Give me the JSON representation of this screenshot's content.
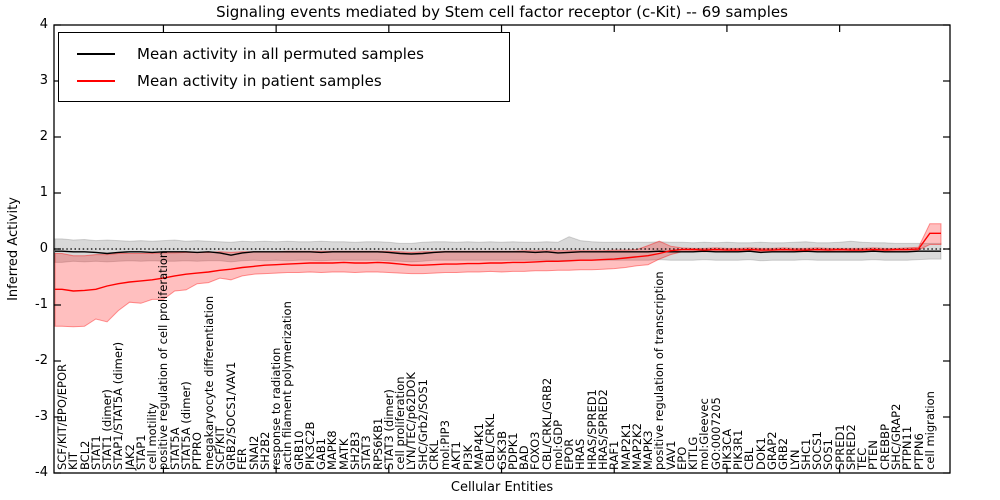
{
  "title": "Signaling events mediated by Stem cell factor receptor (c-Kit) -- 69 samples",
  "legend": {
    "entries": [
      {
        "label": "Mean activity in all permuted samples",
        "color": "#000000"
      },
      {
        "label": "Mean activity in patient samples",
        "color": "#ff0000"
      }
    ]
  },
  "chart_data": {
    "type": "line",
    "title": "Signaling events mediated by Stem cell factor receptor (c-Kit) -- 69 samples",
    "xlabel": "Cellular Entities",
    "ylabel": "Inferred Activity",
    "ylim": [
      -4,
      4
    ],
    "yticks": [
      -4,
      -3,
      -2,
      -1,
      0,
      1,
      2,
      3,
      4
    ],
    "grid": false,
    "zero_line_dotted": true,
    "legend_position": "upper left",
    "sample_count": "69 samples",
    "categories": [
      "SCF/KIT/EPO/EPOR",
      "KIT",
      "BCL2",
      "STAT1",
      "STAT1 (dimer)",
      "STAP1/STAT5A (dimer)",
      "JAK2",
      "STAP1",
      "cell motility",
      "positive regulation of cell proliferation",
      "STAT5A",
      "STAT5A (dimer)",
      "PTPRO",
      "megakaryocyte differentiation",
      "SCF/KIT",
      "GRB2/SOCS1/VAV1",
      "FER",
      "SNAI2",
      "SH2B2",
      "response to radiation",
      "actin filament polymerization",
      "GRB10",
      "PIK3C2B",
      "GAB1",
      "MAPK8",
      "MATK",
      "SH2B3",
      "STAT3",
      "RPS6KB1",
      "STAT3 (dimer)",
      "cell proliferation",
      "LYN/TEC/p62DOK",
      "SHC/Grb2/SOS1",
      "CRKL",
      "mol:PIP3",
      "AKT1",
      "PI3K",
      "MAP4K1",
      "CBL/CRKL",
      "GSK3B",
      "PDPK1",
      "BAD",
      "FOXO3",
      "CBL/CRKL/GRB2",
      "mol:GDP",
      "EPOR",
      "HRAS",
      "HRAS/SPRED1",
      "HRAS/SPRED2",
      "RAF1",
      "MAP2K1",
      "MAP2K2",
      "MAPK3",
      "positive regulation of transcription",
      "VAV1",
      "EPO",
      "KITLG",
      "mol:Gleevec",
      "GO:0007205",
      "PIK3CA",
      "PIK3R1",
      "CBL",
      "DOK1",
      "GRAP2",
      "GRB2",
      "LYN",
      "SHC1",
      "SOCS1",
      "SOS1",
      "SPRED1",
      "SPRED2",
      "TEC",
      "PTEN",
      "CREBBP",
      "SHC/GRAP2",
      "PTPN11",
      "PTPN6",
      "cell migration"
    ],
    "series": [
      {
        "name": "Mean activity in all permuted samples",
        "color": "#000000",
        "band_color": "rgba(0,0,0,0.15)",
        "band_edge": "rgba(0,0,0,0.15)",
        "values": [
          -0.04,
          -0.05,
          -0.05,
          -0.06,
          -0.08,
          -0.06,
          -0.05,
          -0.05,
          -0.06,
          -0.05,
          -0.05,
          -0.05,
          -0.06,
          -0.05,
          -0.07,
          -0.11,
          -0.07,
          -0.05,
          -0.05,
          -0.05,
          -0.05,
          -0.05,
          -0.05,
          -0.06,
          -0.05,
          -0.05,
          -0.05,
          -0.05,
          -0.05,
          -0.06,
          -0.08,
          -0.09,
          -0.08,
          -0.06,
          -0.05,
          -0.05,
          -0.05,
          -0.05,
          -0.05,
          -0.05,
          -0.05,
          -0.05,
          -0.06,
          -0.05,
          -0.07,
          -0.06,
          -0.05,
          -0.05,
          -0.05,
          -0.05,
          -0.05,
          -0.05,
          -0.05,
          -0.04,
          -0.05,
          -0.05,
          -0.05,
          -0.04,
          -0.05,
          -0.05,
          -0.05,
          -0.04,
          -0.06,
          -0.05,
          -0.05,
          -0.05,
          -0.04,
          -0.05,
          -0.05,
          -0.05,
          -0.05,
          -0.05,
          -0.04,
          -0.05,
          -0.05,
          -0.05,
          -0.04,
          -0.04
        ],
        "band_upper": [
          0.18,
          0.16,
          0.17,
          0.15,
          0.16,
          0.15,
          0.14,
          0.15,
          0.14,
          0.15,
          0.16,
          0.14,
          0.15,
          0.14,
          0.13,
          0.12,
          0.14,
          0.13,
          0.14,
          0.13,
          0.14,
          0.13,
          0.13,
          0.14,
          0.13,
          0.13,
          0.12,
          0.13,
          0.13,
          0.12,
          0.1,
          0.1,
          0.12,
          0.13,
          0.13,
          0.12,
          0.13,
          0.12,
          0.13,
          0.12,
          0.13,
          0.12,
          0.12,
          0.13,
          0.12,
          0.22,
          0.15,
          0.13,
          0.12,
          0.12,
          0.12,
          0.12,
          0.12,
          0.13,
          0.12,
          0.12,
          0.11,
          0.12,
          0.11,
          0.12,
          0.11,
          0.11,
          0.12,
          0.11,
          0.11,
          0.12,
          0.13,
          0.11,
          0.11,
          0.12,
          0.14,
          0.12,
          0.11,
          0.11,
          0.1,
          0.1,
          0.1,
          0.1
        ],
        "band_lower": [
          -0.24,
          -0.22,
          -0.23,
          -0.22,
          -0.23,
          -0.22,
          -0.21,
          -0.22,
          -0.21,
          -0.22,
          -0.22,
          -0.21,
          -0.22,
          -0.21,
          -0.21,
          -0.23,
          -0.21,
          -0.2,
          -0.21,
          -0.2,
          -0.21,
          -0.2,
          -0.2,
          -0.21,
          -0.2,
          -0.2,
          -0.2,
          -0.2,
          -0.2,
          -0.21,
          -0.22,
          -0.23,
          -0.22,
          -0.2,
          -0.2,
          -0.2,
          -0.2,
          -0.2,
          -0.2,
          -0.2,
          -0.2,
          -0.2,
          -0.2,
          -0.2,
          -0.21,
          -0.2,
          -0.2,
          -0.2,
          -0.2,
          -0.2,
          -0.2,
          -0.2,
          -0.2,
          -0.19,
          -0.2,
          -0.2,
          -0.2,
          -0.19,
          -0.2,
          -0.2,
          -0.2,
          -0.19,
          -0.21,
          -0.2,
          -0.2,
          -0.2,
          -0.19,
          -0.2,
          -0.2,
          -0.2,
          -0.2,
          -0.2,
          -0.19,
          -0.2,
          -0.2,
          -0.2,
          -0.19,
          -0.18
        ]
      },
      {
        "name": "Mean activity in patient samples",
        "color": "#ff0000",
        "band_color": "rgba(255,0,0,0.25)",
        "band_edge": "rgba(255,0,0,0.4)",
        "values": [
          -0.72,
          -0.75,
          -0.74,
          -0.72,
          -0.66,
          -0.62,
          -0.59,
          -0.57,
          -0.55,
          -0.52,
          -0.48,
          -0.45,
          -0.43,
          -0.41,
          -0.38,
          -0.36,
          -0.33,
          -0.31,
          -0.29,
          -0.28,
          -0.27,
          -0.26,
          -0.25,
          -0.25,
          -0.25,
          -0.24,
          -0.25,
          -0.25,
          -0.24,
          -0.25,
          -0.27,
          -0.29,
          -0.29,
          -0.28,
          -0.27,
          -0.27,
          -0.26,
          -0.26,
          -0.25,
          -0.25,
          -0.24,
          -0.24,
          -0.23,
          -0.22,
          -0.22,
          -0.21,
          -0.2,
          -0.2,
          -0.19,
          -0.18,
          -0.16,
          -0.14,
          -0.12,
          -0.08,
          -0.03,
          -0.01,
          -0.01,
          -0.02,
          -0.01,
          -0.02,
          -0.02,
          -0.01,
          -0.02,
          -0.02,
          -0.01,
          -0.02,
          -0.02,
          -0.01,
          -0.02,
          -0.01,
          -0.02,
          -0.02,
          -0.01,
          -0.02,
          -0.01,
          -0.01,
          0.0,
          0.28
        ],
        "band_upper": [
          -0.08,
          -0.12,
          -0.12,
          -0.1,
          -0.1,
          -0.08,
          -0.08,
          -0.08,
          -0.08,
          -0.07,
          -0.07,
          -0.06,
          -0.06,
          -0.06,
          -0.05,
          -0.06,
          -0.05,
          -0.05,
          -0.05,
          -0.05,
          -0.04,
          -0.04,
          -0.04,
          -0.04,
          -0.04,
          -0.04,
          -0.04,
          -0.04,
          -0.04,
          -0.04,
          -0.05,
          -0.06,
          -0.05,
          -0.05,
          -0.04,
          -0.04,
          -0.04,
          -0.04,
          -0.04,
          -0.04,
          -0.04,
          -0.03,
          -0.03,
          -0.03,
          -0.03,
          -0.03,
          -0.03,
          -0.03,
          -0.03,
          -0.02,
          -0.02,
          -0.01,
          0.06,
          0.14,
          0.05,
          0.02,
          0.01,
          0.01,
          0.02,
          0.01,
          0.01,
          0.02,
          0.01,
          0.01,
          0.02,
          0.01,
          0.01,
          0.02,
          0.01,
          0.01,
          0.01,
          0.01,
          0.02,
          0.01,
          0.01,
          0.02,
          0.03,
          0.45
        ],
        "band_lower": [
          -1.38,
          -1.39,
          -1.38,
          -1.25,
          -1.3,
          -1.1,
          -0.95,
          -0.97,
          -0.9,
          -0.9,
          -0.75,
          -0.73,
          -0.62,
          -0.6,
          -0.52,
          -0.55,
          -0.48,
          -0.45,
          -0.44,
          -0.43,
          -0.42,
          -0.42,
          -0.41,
          -0.42,
          -0.41,
          -0.41,
          -0.42,
          -0.41,
          -0.41,
          -0.42,
          -0.43,
          -0.44,
          -0.44,
          -0.43,
          -0.42,
          -0.42,
          -0.41,
          -0.41,
          -0.4,
          -0.41,
          -0.4,
          -0.4,
          -0.39,
          -0.39,
          -0.38,
          -0.38,
          -0.37,
          -0.37,
          -0.36,
          -0.35,
          -0.33,
          -0.3,
          -0.28,
          -0.18,
          -0.1,
          -0.05,
          -0.04,
          -0.05,
          -0.04,
          -0.05,
          -0.05,
          -0.04,
          -0.05,
          -0.05,
          -0.04,
          -0.05,
          -0.05,
          -0.04,
          -0.05,
          -0.04,
          -0.05,
          -0.05,
          -0.04,
          -0.05,
          -0.04,
          -0.04,
          -0.02,
          0.08
        ]
      }
    ]
  }
}
